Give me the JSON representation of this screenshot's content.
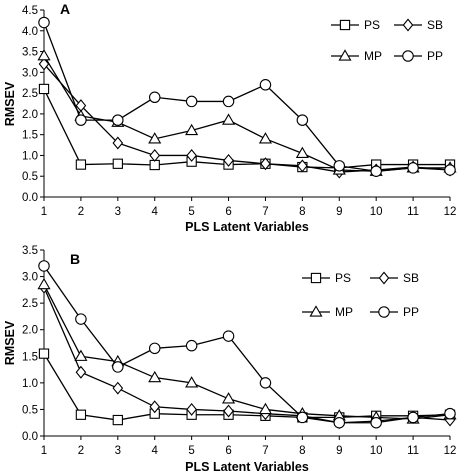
{
  "chart_data": [
    {
      "type": "line",
      "panel": "A",
      "xlabel": "PLS Latent Variables",
      "ylabel": "RMSEV",
      "x": [
        1,
        2,
        3,
        4,
        5,
        6,
        7,
        8,
        9,
        10,
        11,
        12
      ],
      "xlim": [
        1,
        12
      ],
      "ylim": [
        0,
        4.5
      ],
      "yticks": [
        0,
        0.5,
        1,
        1.5,
        2,
        2.5,
        3,
        3.5,
        4,
        4.5
      ],
      "ytick_labels": [
        "0.0",
        "0.5",
        "1.0",
        "1.5",
        "2.0",
        "2.5",
        "3.0",
        "3.5",
        "4.0",
        "4.5"
      ],
      "grid": false,
      "legend_position": "top-right",
      "series": [
        {
          "name": "PS",
          "marker": "square",
          "values": [
            2.6,
            0.78,
            0.8,
            0.77,
            0.85,
            0.78,
            0.8,
            0.72,
            0.7,
            0.78,
            0.78,
            0.78
          ]
        },
        {
          "name": "SB",
          "marker": "diamond",
          "values": [
            3.2,
            2.2,
            1.3,
            1.0,
            1.0,
            0.88,
            0.8,
            0.75,
            0.6,
            0.65,
            0.72,
            0.65
          ]
        },
        {
          "name": "MP",
          "marker": "triangle",
          "values": [
            3.4,
            1.95,
            1.8,
            1.4,
            1.6,
            1.85,
            1.4,
            1.05,
            0.65,
            0.62,
            0.7,
            0.7
          ]
        },
        {
          "name": "PP",
          "marker": "circle",
          "values": [
            4.2,
            1.85,
            1.85,
            2.4,
            2.3,
            2.3,
            2.7,
            1.85,
            0.75,
            0.62,
            0.7,
            0.65
          ]
        }
      ]
    },
    {
      "type": "line",
      "panel": "B",
      "xlabel": "PLS Latent Variables",
      "ylabel": "RMSEV",
      "x": [
        1,
        2,
        3,
        4,
        5,
        6,
        7,
        8,
        9,
        10,
        11,
        12
      ],
      "xlim": [
        1,
        12
      ],
      "ylim": [
        0,
        3.5
      ],
      "yticks": [
        0,
        0.5,
        1,
        1.5,
        2,
        2.5,
        3,
        3.5
      ],
      "ytick_labels": [
        "0.0",
        "0.5",
        "1.0",
        "1.5",
        "2.0",
        "2.5",
        "3.0",
        "3.5"
      ],
      "grid": false,
      "legend_position": "top-right",
      "series": [
        {
          "name": "PS",
          "marker": "square",
          "values": [
            1.55,
            0.4,
            0.3,
            0.42,
            0.4,
            0.4,
            0.38,
            0.35,
            0.35,
            0.38,
            0.38,
            0.4
          ]
        },
        {
          "name": "SB",
          "marker": "diamond",
          "values": [
            2.8,
            1.2,
            0.9,
            0.55,
            0.5,
            0.47,
            0.42,
            0.38,
            0.25,
            0.28,
            0.35,
            0.3
          ]
        },
        {
          "name": "MP",
          "marker": "triangle",
          "values": [
            2.85,
            1.5,
            1.4,
            1.1,
            1.0,
            0.7,
            0.5,
            0.42,
            0.38,
            0.35,
            0.32,
            0.4
          ]
        },
        {
          "name": "PP",
          "marker": "circle",
          "values": [
            3.2,
            2.2,
            1.3,
            1.65,
            1.7,
            1.88,
            1.0,
            0.35,
            0.25,
            0.25,
            0.35,
            0.42
          ]
        }
      ]
    }
  ]
}
